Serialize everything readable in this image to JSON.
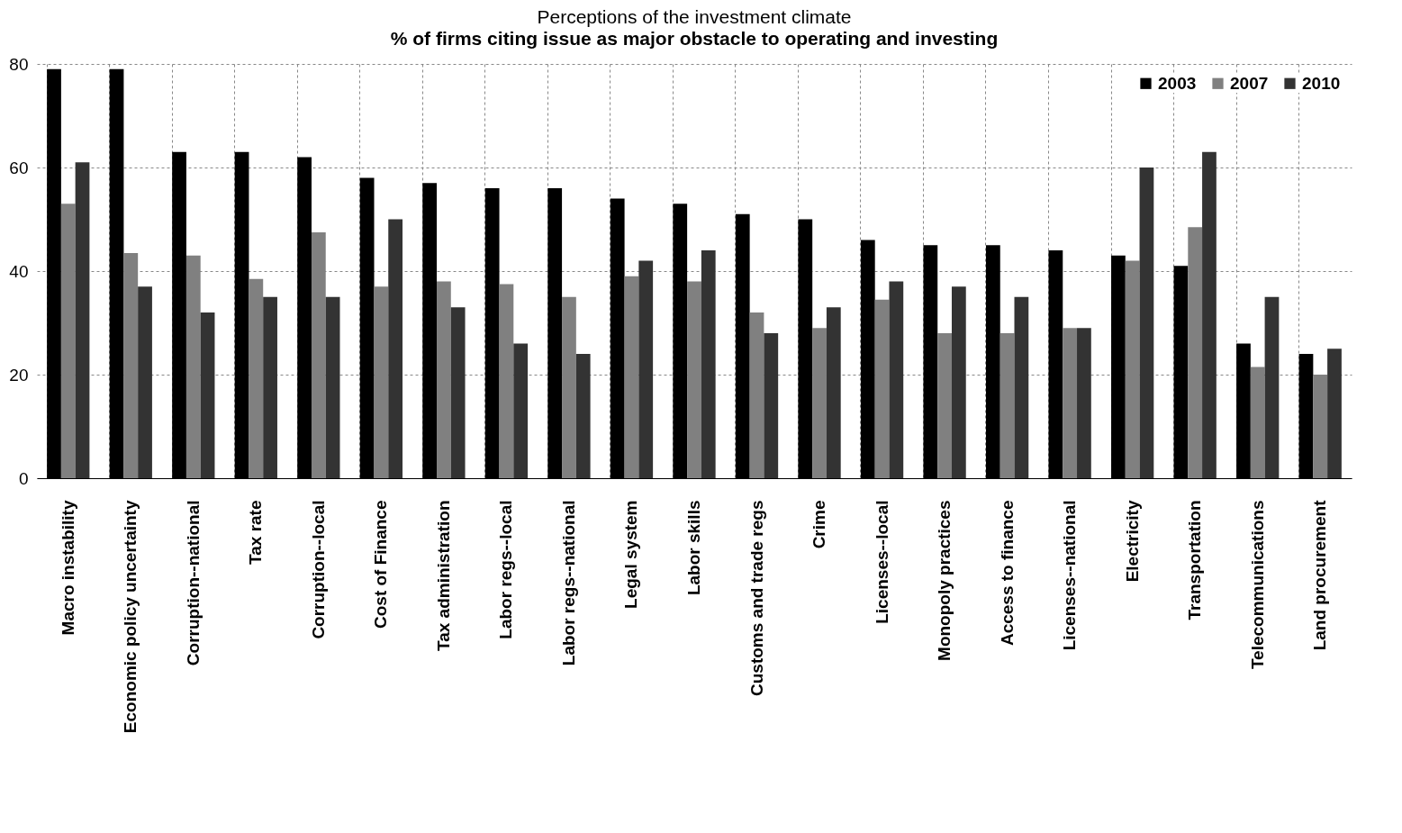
{
  "chart_data": {
    "type": "bar",
    "title": "Perceptions of the investment climate",
    "subtitle": "% of firms citing issue as major obstacle to operating and investing",
    "categories": [
      "Macro instability",
      "Economic policy uncertainty",
      "Corruption--national",
      "Tax rate",
      "Corruption--local",
      "Cost of Finance",
      "Tax administration",
      "Labor regs--local",
      "Labor regs--national",
      "Legal system",
      "Labor skills",
      "Customs and trade regs",
      "Crime",
      "Licenses--local",
      "Monopoly practices",
      "Access to finance",
      "Licenses--national",
      "Electricity",
      "Transportation",
      "Telecommunications",
      "Land procurement"
    ],
    "series": [
      {
        "name": "2003",
        "color": "#000000",
        "values": [
          79,
          79,
          63,
          63,
          62,
          58,
          57,
          56,
          56,
          54,
          53,
          51,
          50,
          46,
          45,
          45,
          44,
          43,
          41,
          26,
          24
        ]
      },
      {
        "name": "2007",
        "color": "#808080",
        "values": [
          53,
          43.5,
          43,
          38.5,
          47.5,
          37,
          38,
          37.5,
          35,
          39,
          38,
          32,
          29,
          34.5,
          28,
          28,
          29,
          42,
          48.5,
          21.5,
          20
        ]
      },
      {
        "name": "2010",
        "color": "#333333",
        "values": [
          61,
          37,
          32,
          35,
          35,
          50,
          33,
          26,
          24,
          42,
          44,
          28,
          33,
          38,
          37,
          35,
          29,
          60,
          63,
          35,
          25
        ]
      }
    ],
    "ylim": [
      0,
      80
    ],
    "yticks": [
      0,
      20,
      40,
      60,
      80
    ],
    "grid": true,
    "legend": "top right"
  }
}
